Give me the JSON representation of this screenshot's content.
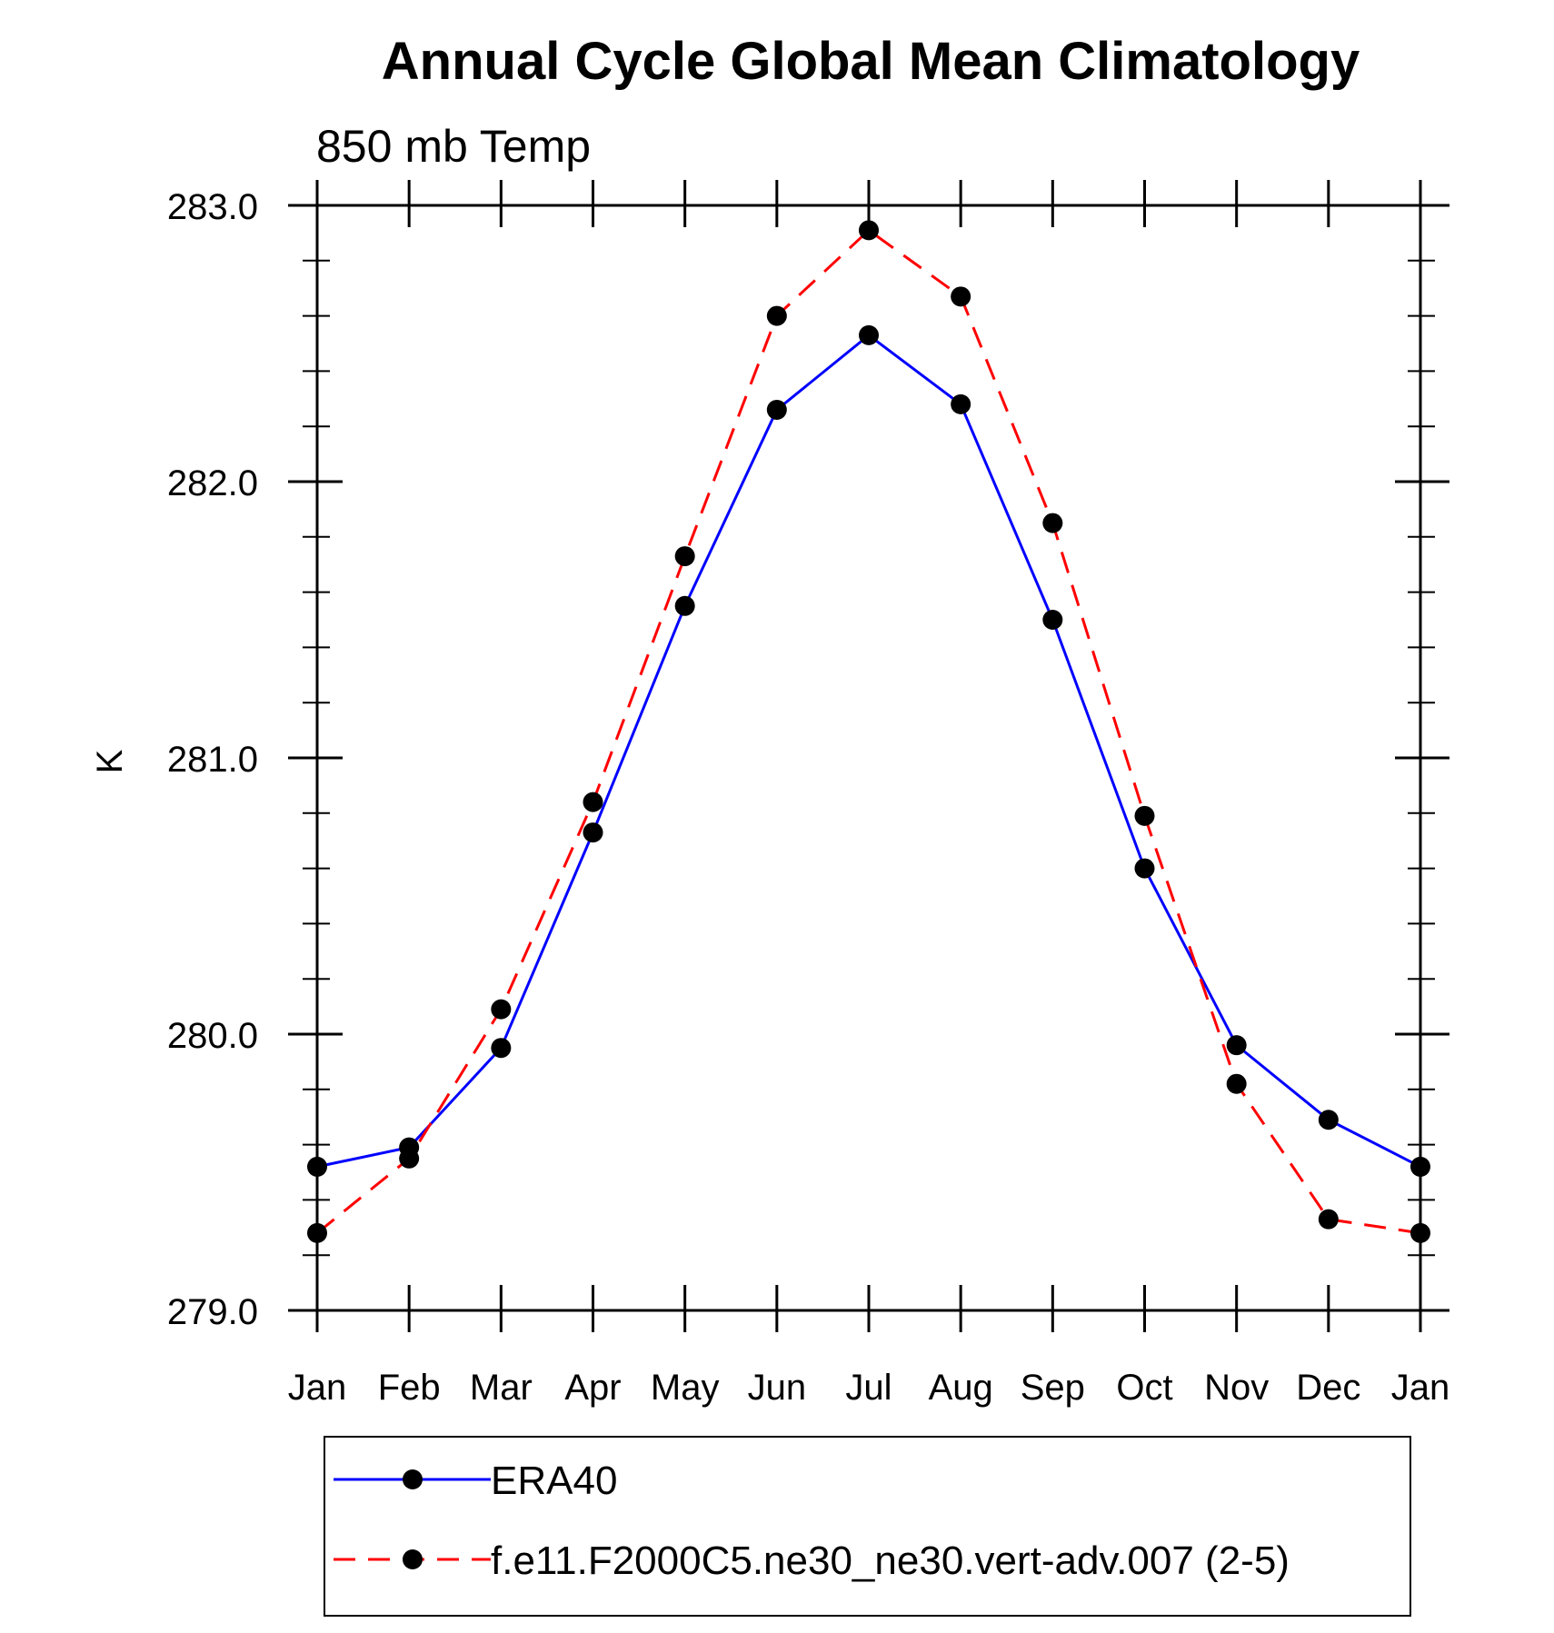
{
  "chart_data": {
    "type": "line",
    "title": "Annual Cycle Global Mean Climatology",
    "subtitle": "850 mb Temp",
    "xlabel": "",
    "ylabel": "K",
    "categories": [
      "Jan",
      "Feb",
      "Mar",
      "Apr",
      "May",
      "Jun",
      "Jul",
      "Aug",
      "Sep",
      "Oct",
      "Nov",
      "Dec",
      "Jan"
    ],
    "ylim": [
      279.0,
      283.0
    ],
    "yticks": [
      "279.0",
      "280.0",
      "281.0",
      "282.0",
      "283.0"
    ],
    "grid": false,
    "legend_position": "bottom",
    "series": [
      {
        "name": "ERA40",
        "color": "#0000ff",
        "line_style": "solid",
        "marker": "filled-circle",
        "values": [
          279.52,
          279.59,
          279.95,
          280.73,
          281.55,
          282.26,
          282.53,
          282.28,
          281.5,
          280.6,
          279.96,
          279.69,
          279.52
        ]
      },
      {
        "name": "f.e11.F2000C5.ne30_ne30.vert-adv.007 (2-5)",
        "color": "#ff0000",
        "line_style": "dashed",
        "marker": "filled-circle",
        "values": [
          279.28,
          279.55,
          280.09,
          280.84,
          281.73,
          282.6,
          282.91,
          282.67,
          281.85,
          280.79,
          279.82,
          279.33,
          279.28
        ]
      }
    ]
  }
}
